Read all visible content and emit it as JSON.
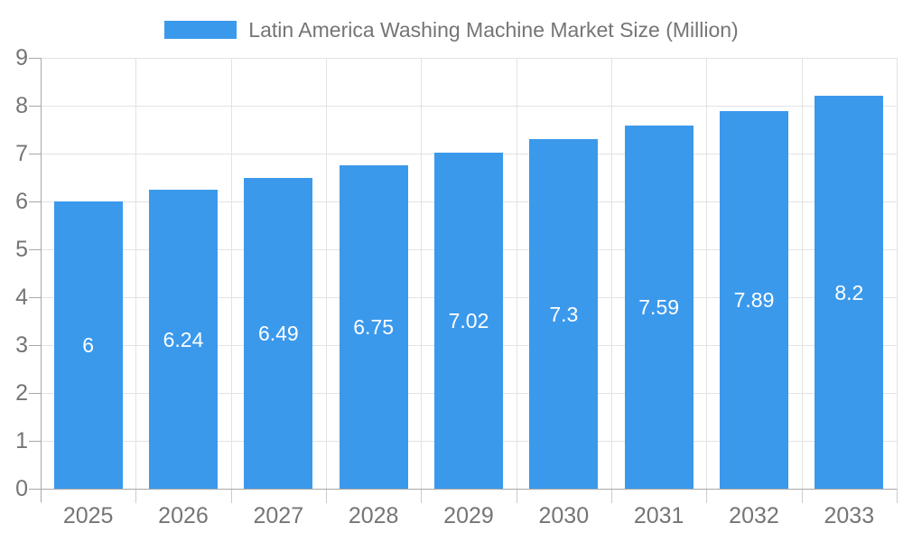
{
  "chart_data": {
    "type": "bar",
    "title": "Latin America Washing Machine Market Size (Million)",
    "categories": [
      "2025",
      "2026",
      "2027",
      "2028",
      "2029",
      "2030",
      "2031",
      "2032",
      "2033"
    ],
    "values": [
      6,
      6.24,
      6.49,
      6.75,
      7.02,
      7.3,
      7.59,
      7.89,
      8.2
    ],
    "value_labels": [
      "6",
      "6.24",
      "6.49",
      "6.75",
      "7.02",
      "7.3",
      "7.59",
      "7.89",
      "8.2"
    ],
    "xlabel": "",
    "ylabel": "",
    "ylim": [
      0,
      9
    ],
    "ytick_step": 1,
    "ytick_labels": [
      "0",
      "1",
      "2",
      "3",
      "4",
      "5",
      "6",
      "7",
      "8",
      "9"
    ],
    "grid": true,
    "legend_position": "top",
    "bar_color": "#3B99EC",
    "value_label_color": "#ffffff"
  }
}
